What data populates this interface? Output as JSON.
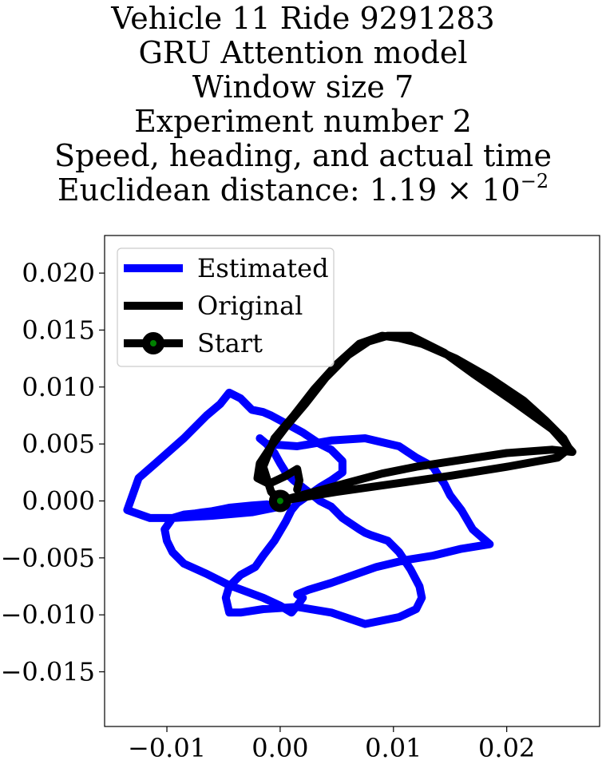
{
  "chart_data": {
    "type": "line",
    "title_lines": [
      "Vehicle 11 Ride 9291283",
      "GRU Attention model",
      "Window size 7",
      "Experiment number 2",
      "Speed, heading, and actual time"
    ],
    "distance_prefix": "Euclidean distance: 1.19 × 10",
    "distance_exponent": "−2",
    "xlabel": "",
    "ylabel": "",
    "xlim": [
      -0.0155,
      0.0282
    ],
    "ylim": [
      -0.0198,
      0.0233
    ],
    "x_ticks": [
      {
        "value": -0.01,
        "label": "−0.01"
      },
      {
        "value": 0.0,
        "label": "0.00"
      },
      {
        "value": 0.01,
        "label": "0.01"
      },
      {
        "value": 0.02,
        "label": "0.02"
      }
    ],
    "y_ticks": [
      {
        "value": 0.02,
        "label": "0.020"
      },
      {
        "value": 0.015,
        "label": "0.015"
      },
      {
        "value": 0.01,
        "label": "0.010"
      },
      {
        "value": 0.005,
        "label": "0.005"
      },
      {
        "value": 0.0,
        "label": "0.000"
      },
      {
        "value": -0.005,
        "label": "−0.005"
      },
      {
        "value": -0.01,
        "label": "−0.010"
      },
      {
        "value": -0.015,
        "label": "−0.015"
      }
    ],
    "grid": false,
    "legend_position": "top-left",
    "series": [
      {
        "name": "Estimated",
        "color": "#0000ff",
        "x": [
          0.0,
          -0.0025,
          -0.006,
          -0.0095,
          -0.0115,
          -0.0135,
          -0.0125,
          -0.011,
          -0.0085,
          -0.0065,
          -0.0053,
          -0.0045,
          -0.0035,
          -0.0025,
          -0.0015,
          -0.0008,
          0.0005,
          0.002,
          0.0035,
          0.0045,
          0.0055,
          0.0055,
          0.0045,
          0.0035,
          0.0025,
          0.0015,
          0.001,
          0.0005,
          -0.0005,
          -0.0015,
          -0.0022,
          -0.0035,
          -0.0045,
          -0.0048,
          -0.0045,
          -0.0035,
          -0.0015,
          0.0015,
          0.0045,
          0.0075,
          0.0105,
          0.012,
          0.0125,
          0.0123,
          0.0115,
          0.0105,
          0.0095,
          0.008,
          0.0075,
          0.007,
          0.0055,
          0.0045,
          0.0035,
          0.0025,
          0.0012,
          0.0005,
          0.0,
          -0.0005,
          -0.0012,
          -0.0018,
          -0.0012,
          0.0015,
          0.0045,
          0.0075,
          0.0105,
          0.012,
          0.0135,
          0.014,
          0.0145,
          0.015,
          0.016,
          0.017,
          0.0185,
          0.016,
          0.0135,
          0.011,
          0.0085,
          0.0065,
          0.0045,
          0.0025,
          0.0015,
          0.002,
          0.0015,
          0.001,
          0.0,
          -0.0015,
          -0.0045,
          -0.0065,
          -0.0085,
          -0.0095,
          -0.01,
          -0.0102,
          -0.0095,
          -0.0085,
          -0.0075,
          -0.0068,
          -0.006,
          -0.0055,
          -0.005,
          -0.0045,
          -0.0035,
          -0.0025,
          -0.0012,
          0.0
        ],
        "y": [
          -0.0005,
          -0.001,
          -0.0013,
          -0.0015,
          -0.0015,
          -0.0008,
          0.002,
          0.0033,
          0.0055,
          0.0075,
          0.0085,
          0.0095,
          0.009,
          0.008,
          0.0078,
          0.0075,
          0.0068,
          0.006,
          0.005,
          0.0045,
          0.0035,
          0.0025,
          0.0018,
          0.0012,
          0.0005,
          -0.0002,
          -0.0008,
          -0.0018,
          -0.0035,
          -0.0048,
          -0.0058,
          -0.0065,
          -0.0075,
          -0.0085,
          -0.0098,
          -0.0098,
          -0.0095,
          -0.0093,
          -0.0098,
          -0.0108,
          -0.0102,
          -0.0095,
          -0.0085,
          -0.0075,
          -0.006,
          -0.0045,
          -0.0035,
          -0.003,
          -0.0028,
          -0.0025,
          -0.0015,
          -0.0005,
          0.0,
          0.0008,
          0.0018,
          0.0025,
          0.0033,
          0.0042,
          0.005,
          0.0055,
          0.005,
          0.0048,
          0.0053,
          0.0055,
          0.0048,
          0.0038,
          0.003,
          0.0022,
          0.0015,
          0.0005,
          -0.0008,
          -0.0025,
          -0.0038,
          -0.0042,
          -0.0048,
          -0.0052,
          -0.0058,
          -0.0065,
          -0.0072,
          -0.0078,
          -0.0082,
          -0.0085,
          -0.0092,
          -0.0098,
          -0.0092,
          -0.0085,
          -0.0074,
          -0.0064,
          -0.0055,
          -0.0045,
          -0.0035,
          -0.0025,
          -0.0015,
          -0.0012,
          -0.0011,
          -0.001,
          -0.0009,
          -0.0008,
          -0.0007,
          -0.0006,
          -0.0005,
          -0.0004,
          -0.0003,
          -0.0005
        ]
      },
      {
        "name": "Original",
        "color": "#000000",
        "x": [
          0.0,
          0.005,
          0.01,
          0.015,
          0.02,
          0.0245,
          0.0255,
          0.025,
          0.0235,
          0.0215,
          0.0185,
          0.0155,
          0.0125,
          0.0105,
          0.009,
          0.007,
          0.005,
          0.003,
          0.0012,
          -0.0005,
          -0.0015,
          -0.0008,
          0.0,
          0.003,
          0.006,
          0.009,
          0.012,
          0.016,
          0.02,
          0.024,
          0.0258,
          0.024,
          0.0205,
          0.017,
          0.0145,
          0.0115,
          0.0095,
          0.0078,
          0.006,
          0.004,
          0.0022,
          0.0005,
          -0.0008,
          -0.0018,
          -0.002,
          -0.001,
          0.0005,
          0.0015,
          0.0017,
          0.0015
        ],
        "y": [
          0.0,
          0.0008,
          0.0015,
          0.0022,
          0.003,
          0.0038,
          0.0046,
          0.0055,
          0.007,
          0.0088,
          0.0108,
          0.0125,
          0.0138,
          0.0143,
          0.0145,
          0.0138,
          0.012,
          0.0098,
          0.0075,
          0.0055,
          0.003,
          0.0008,
          0.0,
          0.0008,
          0.0016,
          0.0024,
          0.003,
          0.0036,
          0.0042,
          0.0045,
          0.0043,
          0.0063,
          0.0088,
          0.0112,
          0.013,
          0.0145,
          0.0145,
          0.014,
          0.0128,
          0.0108,
          0.0085,
          0.0065,
          0.0048,
          0.0033,
          0.002,
          0.0015,
          0.0022,
          0.0028,
          0.0018,
          0.001
        ]
      },
      {
        "name": "Start",
        "color": "#000000",
        "marker_fill": "#008000",
        "x": [
          0.0
        ],
        "y": [
          0.0
        ]
      }
    ]
  }
}
